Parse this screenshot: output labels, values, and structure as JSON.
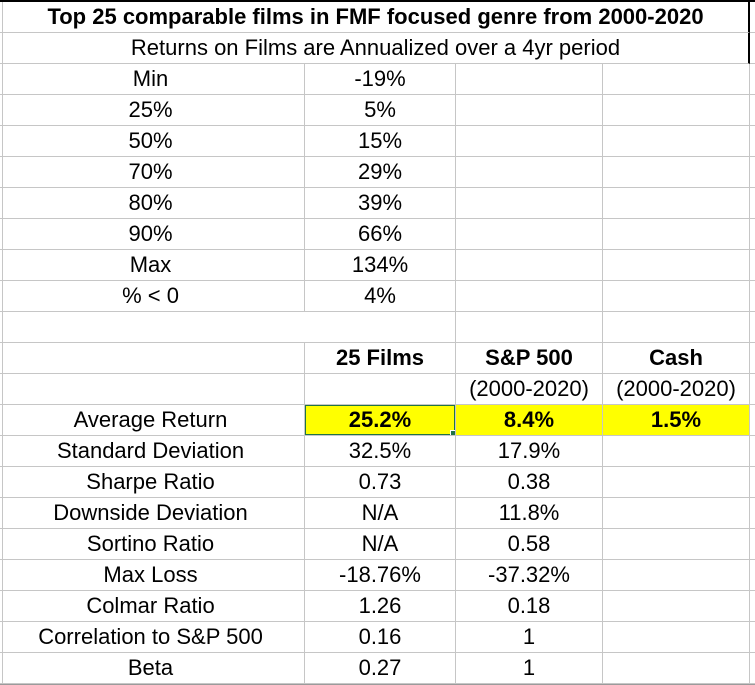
{
  "sheet": {
    "title": "Top 25 comparable films in FMF focused genre from 2000-2020",
    "subtitle": "Returns on Films are Annualized over a 4yr period"
  },
  "distribution": {
    "rows": [
      {
        "label": "Min",
        "value": "-19%"
      },
      {
        "label": "25%",
        "value": "5%"
      },
      {
        "label": "50%",
        "value": "15%"
      },
      {
        "label": "70%",
        "value": "29%"
      },
      {
        "label": "80%",
        "value": "39%"
      },
      {
        "label": "90%",
        "value": "66%"
      },
      {
        "label": "Max",
        "value": "134%"
      },
      {
        "label": "% < 0",
        "value": "4%"
      }
    ]
  },
  "comparison": {
    "columns": [
      {
        "label": "25 Films",
        "sublabel": ""
      },
      {
        "label": "S&P 500",
        "sublabel": "(2000-2020)"
      },
      {
        "label": "Cash",
        "sublabel": "(2000-2020)"
      }
    ],
    "rows": [
      {
        "label": "Average Return",
        "values": [
          "25.2%",
          "8.4%",
          "1.5%"
        ],
        "highlighted": true
      },
      {
        "label": "Standard Deviation",
        "values": [
          "32.5%",
          "17.9%",
          ""
        ]
      },
      {
        "label": "Sharpe Ratio",
        "values": [
          "0.73",
          "0.38",
          ""
        ]
      },
      {
        "label": "Downside Deviation",
        "values": [
          "N/A",
          "11.8%",
          ""
        ]
      },
      {
        "label": "Sortino Ratio",
        "values": [
          "N/A",
          "0.58",
          ""
        ]
      },
      {
        "label": "Max Loss",
        "values": [
          "-18.76%",
          "-37.32%",
          ""
        ]
      },
      {
        "label": "Colmar Ratio",
        "values": [
          "1.26",
          "0.18",
          ""
        ]
      },
      {
        "label": "Correlation to S&P 500",
        "values": [
          "0.16",
          "1",
          ""
        ]
      },
      {
        "label": "Beta",
        "values": [
          "0.27",
          "1",
          ""
        ]
      }
    ]
  },
  "selection": {
    "row": "Average Return",
    "column": "25 Films",
    "value": "25.2%"
  },
  "colors": {
    "highlight": "#ffff00",
    "selection_border": "#217346",
    "gridline": "#c6c6c6",
    "text": "#000000",
    "background": "#ffffff"
  }
}
